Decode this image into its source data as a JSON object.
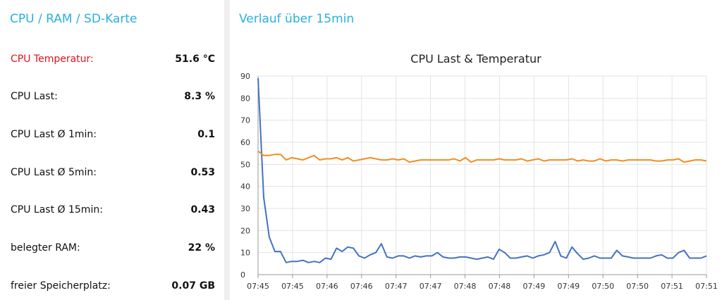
{
  "left_panel": {
    "title": "CPU / RAM / SD-Karte",
    "rows": [
      {
        "label": "CPU Temperatur:",
        "value": "51.6 °C",
        "alert": true
      },
      {
        "label": "CPU Last:",
        "value": "8.3 %",
        "alert": false
      },
      {
        "label": "CPU Last Ø 1min:",
        "value": "0.1",
        "alert": false
      },
      {
        "label": "CPU Last Ø 5min:",
        "value": "0.53",
        "alert": false
      },
      {
        "label": "CPU Last Ø 15min:",
        "value": "0.43",
        "alert": false
      },
      {
        "label": "belegter RAM:",
        "value": "22 %",
        "alert": false
      },
      {
        "label": "freier Speicherplatz:",
        "value": "0.07 GB",
        "alert": false
      }
    ]
  },
  "right_panel": {
    "title": "Verlauf über 15min"
  },
  "colors": {
    "title_blue": "#29b0de",
    "alert_red": "#e0121f",
    "series_load": "#4472c4",
    "series_temp": "#f28c1f"
  },
  "chart_data": {
    "type": "line",
    "title": "CPU Last & Temperatur",
    "ylim": [
      0,
      90
    ],
    "yticks": [
      0,
      10,
      20,
      30,
      40,
      50,
      60,
      70,
      80,
      90
    ],
    "grid": true,
    "xticklabels": [
      "07:45",
      "07:45",
      "07:46",
      "07:46",
      "07:47",
      "07:47",
      "07:48",
      "07:48",
      "07:49",
      "07:49",
      "07:50",
      "07:50",
      "07:51",
      "07:51"
    ],
    "series": [
      {
        "color": "#4472c4",
        "values": [
          89,
          35,
          17,
          10.5,
          10.5,
          5.5,
          6,
          6,
          6.5,
          5.5,
          6,
          5.5,
          7.5,
          7,
          12,
          10.5,
          12.5,
          12,
          8.5,
          7.5,
          9,
          10,
          14,
          8,
          7.5,
          8.5,
          8.5,
          7.5,
          8.5,
          8,
          8.5,
          8.5,
          10,
          8,
          7.5,
          7.5,
          8,
          8,
          7.5,
          7,
          7.5,
          8,
          7,
          11.5,
          10,
          7.5,
          7.5,
          8,
          8.5,
          7.5,
          8.5,
          9,
          10,
          15,
          8.5,
          7.5,
          12.5,
          9.5,
          7,
          7.5,
          8.5,
          7.5,
          7.5,
          7.5,
          11,
          8.5,
          8,
          7.5,
          7.5,
          7.5,
          7.5,
          8.5,
          9,
          7.5,
          7.5,
          10,
          11,
          7.5,
          7.5,
          7.5,
          8.5
        ]
      },
      {
        "color": "#f28c1f",
        "values": [
          56,
          54,
          54,
          54.5,
          54.5,
          52,
          53,
          52.5,
          52,
          53,
          54,
          52,
          52.5,
          52.5,
          53,
          52,
          53,
          51.5,
          52,
          52.5,
          53,
          52.5,
          52,
          52,
          52.5,
          52,
          52.5,
          51,
          51.5,
          52,
          52,
          52,
          52,
          52,
          52,
          52.5,
          51.5,
          53,
          51,
          52,
          52,
          52,
          52,
          52.5,
          52,
          52,
          52,
          52.5,
          51.5,
          52,
          52.5,
          51.5,
          52,
          52,
          52,
          52,
          52.5,
          51.5,
          52,
          51.5,
          51.5,
          52.5,
          51.5,
          52,
          52,
          51.5,
          52,
          52,
          52,
          52,
          52,
          51.5,
          51.5,
          52,
          52,
          52.5,
          51,
          51.5,
          52,
          52,
          51.5
        ]
      }
    ]
  }
}
